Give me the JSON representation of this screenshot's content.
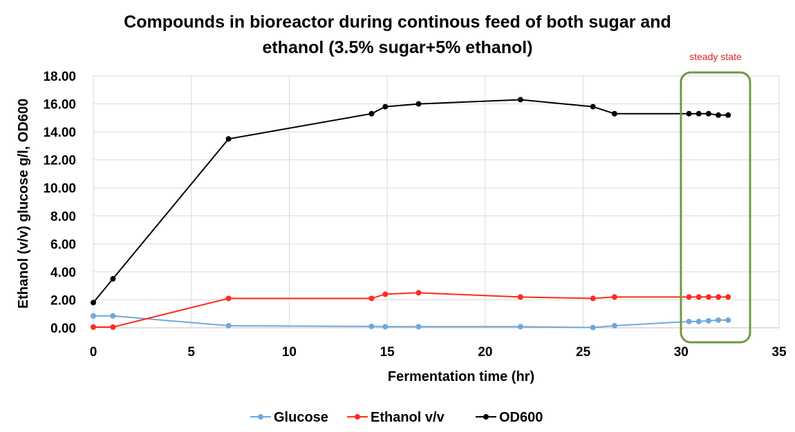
{
  "chart_data": {
    "type": "line",
    "title_lines": [
      "Compounds in bioreactor during continous feed of both sugar and",
      "ethanol (3.5% sugar+5% ethanol)"
    ],
    "xlabel": "Fermentation time (hr)",
    "ylabel": "Ethanol (v/v)  glucose g/l, OD600",
    "xlim": [
      0,
      35
    ],
    "ylim": [
      0,
      18
    ],
    "x_ticks": [
      "0",
      "5",
      "10",
      "15",
      "20",
      "25",
      "30",
      "35"
    ],
    "y_ticks": [
      "0.00",
      "2.00",
      "4.00",
      "6.00",
      "8.00",
      "10.00",
      "12.00",
      "14.00",
      "16.00",
      "18.00"
    ],
    "x": [
      0,
      1,
      6.9,
      14.2,
      14.9,
      16.6,
      21.8,
      25.5,
      26.6,
      30.4,
      30.9,
      31.4,
      31.9,
      32.4
    ],
    "series": [
      {
        "name": "Glucose",
        "color": "#6fa8dc",
        "values": [
          0.85,
          0.85,
          0.15,
          0.1,
          0.08,
          0.08,
          0.08,
          0.02,
          0.15,
          0.45,
          0.45,
          0.5,
          0.55,
          0.55
        ]
      },
      {
        "name": "Ethanol v/v",
        "color": "#ff2a1a",
        "values": [
          0.05,
          0.05,
          2.1,
          2.1,
          2.4,
          2.5,
          2.2,
          2.1,
          2.2,
          2.2,
          2.2,
          2.2,
          2.2,
          2.2
        ]
      },
      {
        "name": "OD600",
        "color": "#000000",
        "values": [
          1.8,
          3.5,
          13.5,
          15.3,
          15.8,
          16.0,
          16.3,
          15.8,
          15.3,
          15.3,
          15.3,
          15.3,
          15.2,
          15.2
        ]
      }
    ],
    "annotation": {
      "text": "steady state",
      "color": "#e0202a",
      "box_color": "#70993f",
      "x_from": 30.3,
      "x_to": 33.3
    },
    "grid": true,
    "legend_position": "bottom-center"
  }
}
